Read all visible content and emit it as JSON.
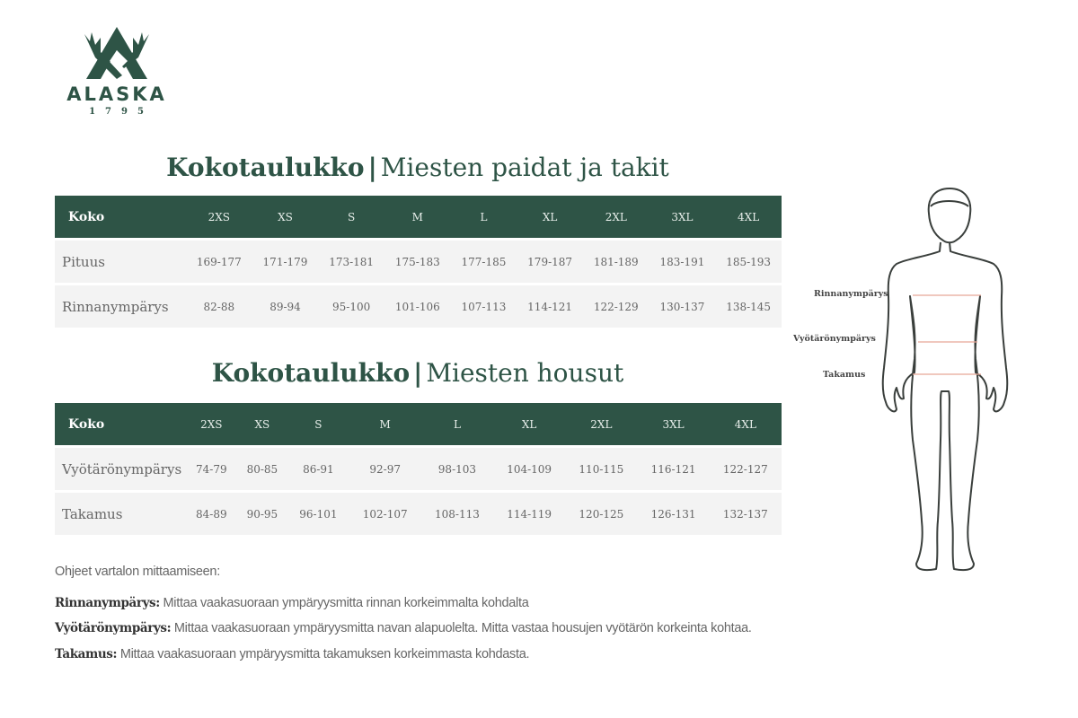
{
  "brand": {
    "name": "ALASKA",
    "year": "1795",
    "color": "#2e5446"
  },
  "tables": [
    {
      "title_bold": "Kokotaulukko",
      "separator": "|",
      "title_rest": "Miesten paidat ja takit",
      "header": [
        "Koko",
        "2XS",
        "XS",
        "S",
        "M",
        "L",
        "XL",
        "2XL",
        "3XL",
        "4XL"
      ],
      "rows": [
        [
          "Pituus",
          "169-177",
          "171-179",
          "173-181",
          "175-183",
          "177-185",
          "179-187",
          "181-189",
          "183-191",
          "185-193"
        ],
        [
          "Rinnanympärys",
          "82-88",
          "89-94",
          "95-100",
          "101-106",
          "107-113",
          "114-121",
          "122-129",
          "130-137",
          "138-145"
        ]
      ]
    },
    {
      "title_bold": "Kokotaulukko",
      "separator": "|",
      "title_rest": "Miesten housut",
      "header": [
        "Koko",
        "2XS",
        "XS",
        "S",
        "M",
        "L",
        "XL",
        "2XL",
        "3XL",
        "4XL"
      ],
      "rows": [
        [
          "Vyötärönympärys",
          "74-79",
          "80-85",
          "86-91",
          "92-97",
          "98-103",
          "104-109",
          "110-115",
          "116-121",
          "122-127"
        ],
        [
          "Takamus",
          "84-89",
          "90-95",
          "96-101",
          "102-107",
          "108-113",
          "114-119",
          "120-125",
          "126-131",
          "132-137"
        ]
      ]
    }
  ],
  "figure": {
    "labels": [
      "Rinnanympärys",
      "Vyötärönympärys",
      "Takamus"
    ],
    "line_color": "#e8a898",
    "outline_color": "#3a3f3c"
  },
  "instructions": {
    "heading": "Ohjeet vartalon mittaamiseen:",
    "items": [
      {
        "term": "Rinnanympärys:",
        "text": "Mittaa vaakasuoraan ympäryysmitta rinnan korkeimmalta kohdalta"
      },
      {
        "term": "Vyötärönympärys:",
        "text": "Mittaa vaakasuoraan ympäryysmitta navan alapuolelta. Mitta vastaa housujen vyötärön korkeinta kohtaa."
      },
      {
        "term": "Takamus:",
        "text": "Mittaa vaakasuoraan ympäryysmitta takamuksen korkeimmasta kohdasta."
      }
    ]
  }
}
